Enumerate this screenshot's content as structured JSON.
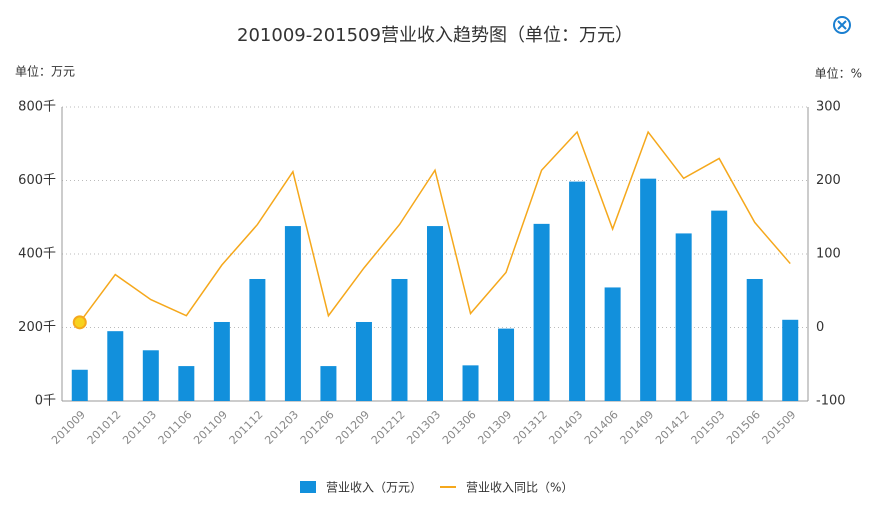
{
  "chart_data": {
    "type": "bar-line",
    "title": "201009-201509营业收入趋势图（单位：万元）",
    "y_unit": "单位：万元",
    "y2_unit": "单位：%",
    "categories": [
      "201009",
      "201012",
      "201103",
      "201106",
      "201109",
      "201112",
      "201203",
      "201206",
      "201209",
      "201212",
      "201303",
      "201306",
      "201309",
      "201312",
      "201403",
      "201406",
      "201409",
      "201412",
      "201503",
      "201506",
      "201509"
    ],
    "series": [
      {
        "name": "营业收入（万元）",
        "type": "bar",
        "color": "#1290dc",
        "values": [
          85,
          190,
          138,
          95,
          215,
          332,
          476,
          95,
          215,
          332,
          476,
          97,
          197,
          482,
          597,
          309,
          605,
          456,
          518,
          332,
          221
        ]
      },
      {
        "name": "营业收入同比（%）",
        "type": "line",
        "color": "#f5a81c",
        "axis": "y2",
        "values": [
          7,
          72,
          38,
          16,
          85,
          140,
          212,
          16,
          81,
          140,
          214,
          19,
          75,
          214,
          266,
          134,
          266,
          203,
          230,
          143,
          87
        ]
      }
    ],
    "ylim": [
      0,
      800
    ],
    "yticks": [
      {
        "value": 0,
        "label": "0千"
      },
      {
        "value": 200,
        "label": "200千"
      },
      {
        "value": 400,
        "label": "400千"
      },
      {
        "value": 600,
        "label": "600千"
      },
      {
        "value": 800,
        "label": "800千"
      }
    ],
    "y2lim": [
      -100,
      300
    ],
    "y2ticks": [
      -100,
      0,
      100,
      200,
      300
    ],
    "grid": true
  }
}
